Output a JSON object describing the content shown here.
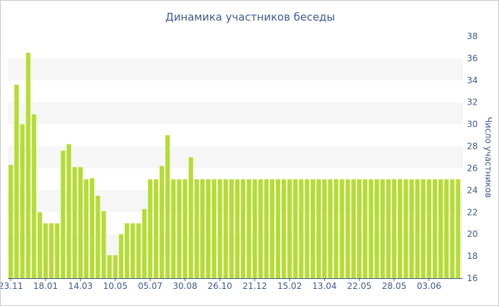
{
  "chart_data": {
    "type": "bar",
    "title": "Динамика участников беседы",
    "xlabel": "",
    "ylabel": "Число участников",
    "ylim": [
      16,
      38
    ],
    "yticks": [
      16,
      18,
      20,
      22,
      24,
      26,
      28,
      30,
      32,
      34,
      36,
      38
    ],
    "y_axis_side": "right",
    "grid": "alternating horizontal bands",
    "legend": "none",
    "bar_color": "#b5dc33",
    "band_color": "#f6f6f6",
    "x_tick_labels": [
      {
        "label": "23.11",
        "index": 0
      },
      {
        "label": "18.01",
        "index": 6
      },
      {
        "label": "14.03",
        "index": 12
      },
      {
        "label": "10.05",
        "index": 18
      },
      {
        "label": "05.07",
        "index": 24
      },
      {
        "label": "30.08",
        "index": 30
      },
      {
        "label": "26.10",
        "index": 36
      },
      {
        "label": "21.12",
        "index": 42
      },
      {
        "label": "15.02",
        "index": 48
      },
      {
        "label": "13.04",
        "index": 54
      },
      {
        "label": "22.05",
        "index": 60
      },
      {
        "label": "28.05",
        "index": 66
      },
      {
        "label": "03.06",
        "index": 72
      }
    ],
    "values": [
      26.3,
      33.6,
      30,
      36.5,
      30.9,
      22,
      21,
      21,
      21,
      27.6,
      28.2,
      26.1,
      26.1,
      25,
      25.1,
      23.5,
      22.1,
      18.1,
      18.1,
      20,
      21,
      21,
      21,
      22.3,
      25,
      25,
      26.2,
      29,
      25,
      25,
      25,
      27,
      25,
      25,
      25,
      25,
      25,
      25,
      25,
      25,
      25,
      25,
      25,
      25,
      25,
      25,
      25,
      25,
      25,
      25,
      25,
      25,
      25,
      25,
      25,
      25,
      25,
      25,
      25,
      25,
      25,
      25,
      25,
      25,
      25,
      25,
      25,
      25,
      25,
      25,
      25,
      25,
      25,
      25,
      25,
      25,
      25,
      25
    ]
  }
}
